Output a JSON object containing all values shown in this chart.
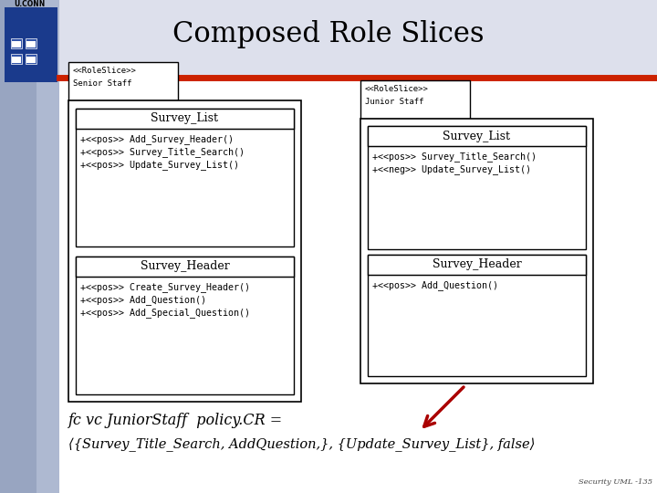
{
  "title": "Composed Role Slices",
  "title_fontsize": 22,
  "bg_color": "#dde0ec",
  "white": "#ffffff",
  "black": "#000000",
  "red_bar": "#cc2200",
  "logo_blue": "#1a3a8c",
  "arrow_color": "#aa0000",
  "senior_label1": "<<RoleSlice>>",
  "senior_label2": "Senior Staff",
  "junior_label1": "<<RoleSlice>>",
  "junior_label2": "Junior Staff",
  "sl_title": "Survey_List",
  "sh_title": "Survey_Header",
  "sl_methods_senior": [
    "+<<pos>> Add_Survey_Header()",
    "+<<pos>> Survey_Title_Search()",
    "+<<pos>> Update_Survey_List()"
  ],
  "sh_methods_senior": [
    "+<<pos>> Create_Survey_Header()",
    "+<<pos>> Add_Question()",
    "+<<pos>> Add_Special_Question()"
  ],
  "sl_methods_junior": [
    "+<<pos>> Survey_Title_Search()",
    "+<<neg>> Update_Survey_List()"
  ],
  "sh_methods_junior": [
    "+<<pos>> Add_Question()"
  ],
  "formula_line1": "fc vc JuniorStaff  policy.CR =",
  "formula_line2": "⟨{Survey_Title_Search, AddQuestion,}, {Update_Survey_List}, false⟩",
  "watermark": "Security UML -135"
}
